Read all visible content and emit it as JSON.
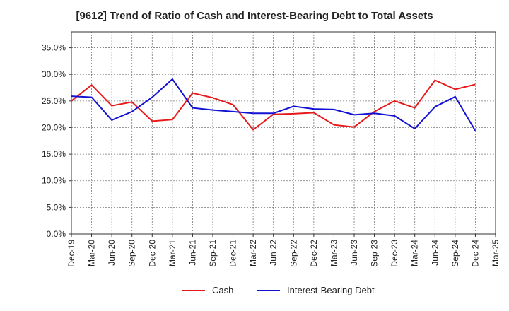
{
  "chart_data": {
    "type": "line",
    "title": "[9612]  Trend of Ratio of Cash and Interest-Bearing Debt to Total Assets",
    "xlabel": "",
    "ylabel": "",
    "ylim": [
      0,
      38
    ],
    "yticks": [
      0,
      5,
      10,
      15,
      20,
      25,
      30,
      35
    ],
    "ytick_labels": [
      "0.0%",
      "5.0%",
      "10.0%",
      "15.0%",
      "20.0%",
      "25.0%",
      "30.0%",
      "35.0%"
    ],
    "categories": [
      "Dec-19",
      "Mar-20",
      "Jun-20",
      "Sep-20",
      "Dec-20",
      "Mar-21",
      "Jun-21",
      "Sep-21",
      "Dec-21",
      "Mar-22",
      "Jun-22",
      "Sep-22",
      "Dec-22",
      "Mar-23",
      "Jun-23",
      "Sep-23",
      "Dec-23",
      "Mar-24",
      "Jun-24",
      "Sep-24",
      "Dec-24",
      "Mar-25"
    ],
    "grid": true,
    "legend_position": "bottom",
    "series": [
      {
        "name": "Cash",
        "color": "#e8191a",
        "values": [
          25.0,
          28.0,
          24.1,
          24.8,
          21.2,
          21.5,
          26.5,
          25.6,
          24.3,
          19.6,
          22.5,
          22.6,
          22.8,
          20.5,
          20.1,
          23.0,
          25.0,
          23.7,
          28.9,
          27.2,
          28.1,
          null
        ]
      },
      {
        "name": "Interest-Bearing Debt",
        "color": "#1212d4",
        "values": [
          25.9,
          25.7,
          21.4,
          23.0,
          25.7,
          29.1,
          23.7,
          23.3,
          23.0,
          22.7,
          22.7,
          24.0,
          23.5,
          23.4,
          22.4,
          22.7,
          22.2,
          19.8,
          23.9,
          25.8,
          19.4,
          null
        ]
      }
    ]
  }
}
